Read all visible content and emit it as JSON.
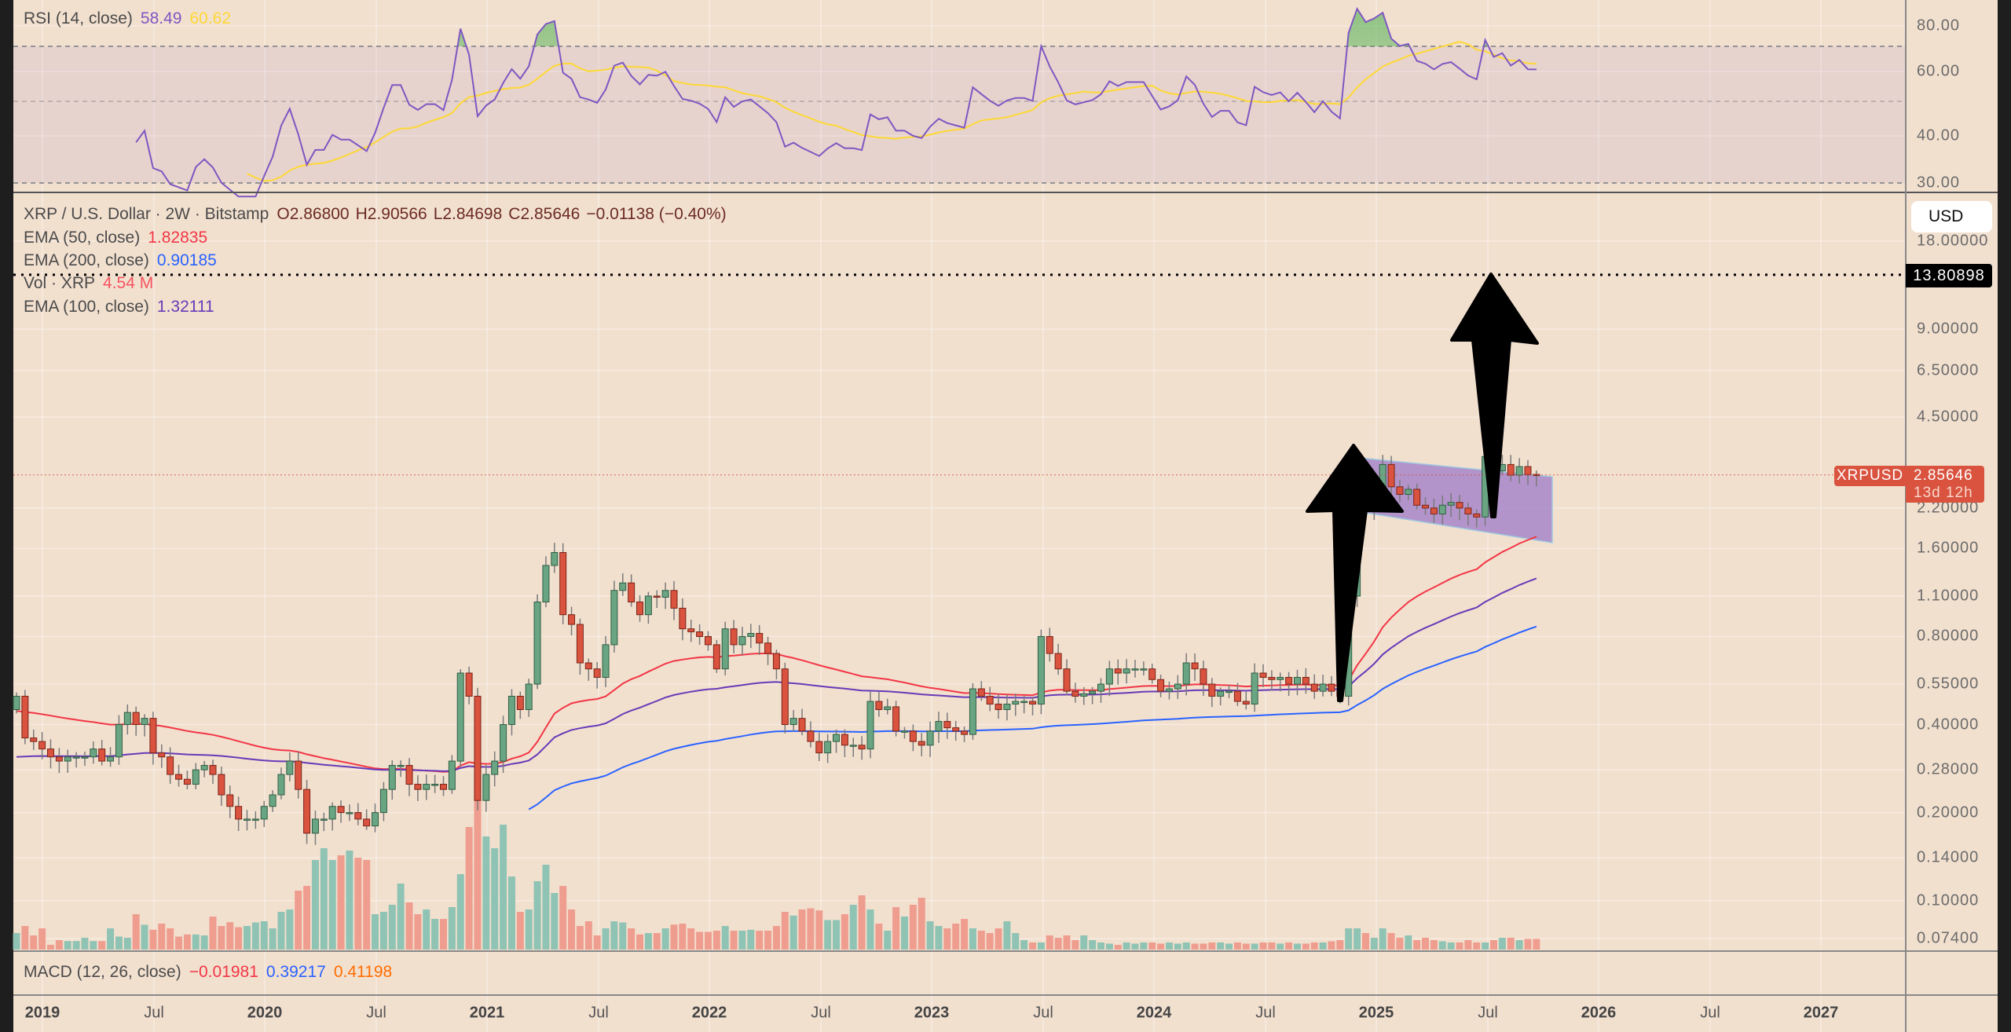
{
  "rsi_legend": {
    "label": "RSI (14, close)",
    "rsi": "58.49",
    "rsi_ma": "60.62"
  },
  "price_legend": {
    "symbol": "XRP / U.S. Dollar · 2W · Bitstamp",
    "open": "O2.86800",
    "high": "H2.90566",
    "low": "L2.84698",
    "close": "C2.85646",
    "change": "−0.01138 (−0.40%)"
  },
  "indicators": [
    {
      "label": "EMA (50, close)",
      "value": "1.82835",
      "color": "#f23645"
    },
    {
      "label": "EMA (200, close)",
      "value": "0.90185",
      "color": "#2962ff"
    },
    {
      "label": "Vol · XRP",
      "value": "4.54 M",
      "color": "#f7525f"
    },
    {
      "label": "EMA (100, close)",
      "value": "1.32111",
      "color": "#673ab7"
    }
  ],
  "macd_legend": {
    "label": "MACD (12, 26, close)",
    "hist": "−0.01981",
    "macd": "0.39217",
    "signal": "0.41198"
  },
  "rsi_axis": [
    "80.00",
    "60.00",
    "40.00",
    "30.00"
  ],
  "price_axis": [
    "18.00000",
    "9.00000",
    "6.50000",
    "4.50000",
    "2.20000",
    "1.60000",
    "1.10000",
    "0.80000",
    "0.55000",
    "0.40000",
    "0.28000",
    "0.20000",
    "0.14000",
    "0.10000",
    "0.07400"
  ],
  "currency_button": "USD",
  "target_price": "13.80898",
  "symbol_tag": "XRPUSD",
  "last_price": "2.85646",
  "countdown": "13d 12h",
  "time_axis": [
    {
      "label": "2019",
      "year": true
    },
    {
      "label": "Jul",
      "year": false
    },
    {
      "label": "2020",
      "year": true
    },
    {
      "label": "Jul",
      "year": false
    },
    {
      "label": "2021",
      "year": true
    },
    {
      "label": "Jul",
      "year": false
    },
    {
      "label": "2022",
      "year": true
    },
    {
      "label": "Jul",
      "year": false
    },
    {
      "label": "2023",
      "year": true
    },
    {
      "label": "Jul",
      "year": false
    },
    {
      "label": "2024",
      "year": true
    },
    {
      "label": "Jul",
      "year": false
    },
    {
      "label": "2025",
      "year": true
    },
    {
      "label": "Jul",
      "year": false
    },
    {
      "label": "2026",
      "year": true
    },
    {
      "label": "Jul",
      "year": false
    },
    {
      "label": "2027",
      "year": true
    }
  ],
  "colors": {
    "background": "#f2e0cf",
    "up": "#6aa583",
    "down": "#d9533f",
    "vol_up": "#8fc3b4",
    "vol_down": "#ef9d8f",
    "rsi": "#7e57c2",
    "rsi_ma": "#fdd835",
    "ema50": "#f23645",
    "ema100": "#673ab7",
    "ema200": "#2962ff",
    "channel": "#9c7bc9"
  },
  "chart_data": {
    "type": "candlestick",
    "interval": "2W",
    "y_scale": "log",
    "ylim": [
      0.074,
      18
    ],
    "first_open": 0.45,
    "last_open": 2.868,
    "closes": [
      0.5,
      0.36,
      0.35,
      0.33,
      0.31,
      0.3,
      0.31,
      0.31,
      0.31,
      0.33,
      0.3,
      0.31,
      0.4,
      0.44,
      0.4,
      0.42,
      0.32,
      0.31,
      0.27,
      0.26,
      0.25,
      0.28,
      0.29,
      0.27,
      0.23,
      0.21,
      0.19,
      0.19,
      0.19,
      0.21,
      0.23,
      0.27,
      0.3,
      0.24,
      0.17,
      0.19,
      0.19,
      0.21,
      0.2,
      0.2,
      0.19,
      0.18,
      0.2,
      0.24,
      0.29,
      0.29,
      0.25,
      0.24,
      0.25,
      0.25,
      0.24,
      0.3,
      0.6,
      0.5,
      0.22,
      0.27,
      0.3,
      0.4,
      0.5,
      0.45,
      0.55,
      1.05,
      1.4,
      1.55,
      0.95,
      0.88,
      0.65,
      0.62,
      0.58,
      0.75,
      1.15,
      1.22,
      1.05,
      0.95,
      1.1,
      1.09,
      1.15,
      1.0,
      0.85,
      0.83,
      0.8,
      0.75,
      0.62,
      0.85,
      0.75,
      0.8,
      0.82,
      0.76,
      0.7,
      0.62,
      0.4,
      0.42,
      0.38,
      0.35,
      0.32,
      0.35,
      0.37,
      0.34,
      0.34,
      0.33,
      0.48,
      0.45,
      0.46,
      0.38,
      0.38,
      0.35,
      0.34,
      0.38,
      0.41,
      0.39,
      0.38,
      0.37,
      0.53,
      0.5,
      0.47,
      0.45,
      0.47,
      0.48,
      0.48,
      0.47,
      0.8,
      0.7,
      0.62,
      0.52,
      0.5,
      0.51,
      0.52,
      0.55,
      0.62,
      0.6,
      0.62,
      0.62,
      0.62,
      0.57,
      0.52,
      0.53,
      0.55,
      0.65,
      0.62,
      0.55,
      0.5,
      0.52,
      0.52,
      0.48,
      0.47,
      0.6,
      0.58,
      0.57,
      0.58,
      0.55,
      0.58,
      0.55,
      0.52,
      0.55,
      0.52,
      0.5,
      1.1,
      2.4,
      2.2,
      2.5,
      3.1,
      2.6,
      2.45,
      2.55,
      2.25,
      2.2,
      2.1,
      2.25,
      2.3,
      2.2,
      2.1,
      2.05,
      3.3,
      2.95,
      3.1,
      2.85,
      3.05,
      2.86,
      2.85646
    ],
    "volume_millions": [
      7,
      10,
      6,
      9,
      2,
      4,
      3.6,
      3.6,
      5,
      3.6,
      3.6,
      9,
      5.5,
      5,
      15,
      10.5,
      8.4,
      11,
      9,
      5.5,
      6.4,
      6.4,
      6,
      14,
      10,
      11.6,
      9.5,
      10,
      11.5,
      12,
      9,
      16,
      17,
      25,
      27,
      38,
      43,
      38,
      40,
      42,
      39,
      38,
      15,
      16,
      19,
      28,
      20,
      15,
      17,
      13,
      13,
      18,
      32,
      52,
      69,
      48,
      43,
      53,
      31,
      16,
      17,
      29,
      36,
      24,
      27,
      17,
      10,
      12,
      6,
      9,
      12,
      11.5,
      9,
      6.4,
      7,
      7,
      9,
      10.6,
      11,
      9,
      7.5,
      7.5,
      8,
      10,
      8,
      8,
      8.4,
      8,
      8,
      10,
      16,
      14.4,
      17,
      17.5,
      16.6,
      12.5,
      12.5,
      15,
      19,
      23,
      17,
      11,
      8,
      18,
      14,
      19,
      22,
      12,
      10,
      9,
      11,
      13,
      9,
      8,
      7,
      9,
      12,
      7,
      4,
      3,
      3,
      6,
      5,
      6,
      4,
      6,
      4,
      3,
      2.5,
      2,
      3,
      2.5,
      3,
      3,
      2.5,
      3,
      2.5,
      3,
      2.5,
      2.5,
      3,
      3,
      2.5,
      3,
      2.5,
      2.5,
      3,
      3,
      2.5,
      3,
      2.5,
      2.5,
      3,
      3,
      3.5,
      4,
      9,
      9,
      7,
      5,
      9,
      7,
      5,
      6,
      4,
      5,
      4,
      3.5,
      3,
      3,
      4,
      3,
      3,
      4,
      5,
      5,
      4,
      4.5,
      4.54
    ],
    "rsi_levels": [
      70,
      50,
      30
    ]
  }
}
